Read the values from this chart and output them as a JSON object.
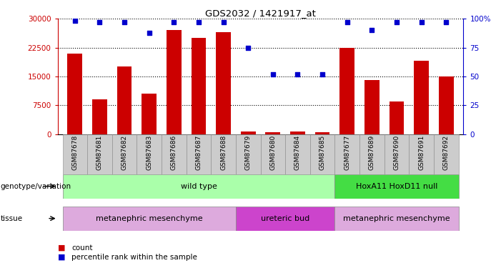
{
  "title": "GDS2032 / 1421917_at",
  "samples": [
    "GSM87678",
    "GSM87681",
    "GSM87682",
    "GSM87683",
    "GSM87686",
    "GSM87687",
    "GSM87688",
    "GSM87679",
    "GSM87680",
    "GSM87684",
    "GSM87685",
    "GSM87677",
    "GSM87689",
    "GSM87690",
    "GSM87691",
    "GSM87692"
  ],
  "counts": [
    21000,
    9000,
    17500,
    10500,
    27000,
    25000,
    26500,
    700,
    400,
    700,
    500,
    22500,
    14000,
    8500,
    19000,
    15000
  ],
  "percentile": [
    98,
    97,
    97,
    88,
    97,
    97,
    97,
    75,
    52,
    52,
    52,
    97,
    90,
    97,
    97,
    97
  ],
  "ylim_left": [
    0,
    30000
  ],
  "ylim_right": [
    0,
    100
  ],
  "yticks_left": [
    0,
    7500,
    15000,
    22500,
    30000
  ],
  "yticks_right": [
    0,
    25,
    50,
    75,
    100
  ],
  "bar_color": "#cc0000",
  "dot_color": "#0000cc",
  "genotype_groups": [
    {
      "label": "wild type",
      "start": 0,
      "end": 11,
      "color": "#aaffaa"
    },
    {
      "label": "HoxA11 HoxD11 null",
      "start": 11,
      "end": 16,
      "color": "#44dd44"
    }
  ],
  "tissue_groups": [
    {
      "label": "metanephric mesenchyme",
      "start": 0,
      "end": 7,
      "color": "#ddaadd"
    },
    {
      "label": "ureteric bud",
      "start": 7,
      "end": 11,
      "color": "#cc44cc"
    },
    {
      "label": "metanephric mesenchyme",
      "start": 11,
      "end": 16,
      "color": "#ddaadd"
    }
  ],
  "xticklabel_bg": "#cccccc"
}
